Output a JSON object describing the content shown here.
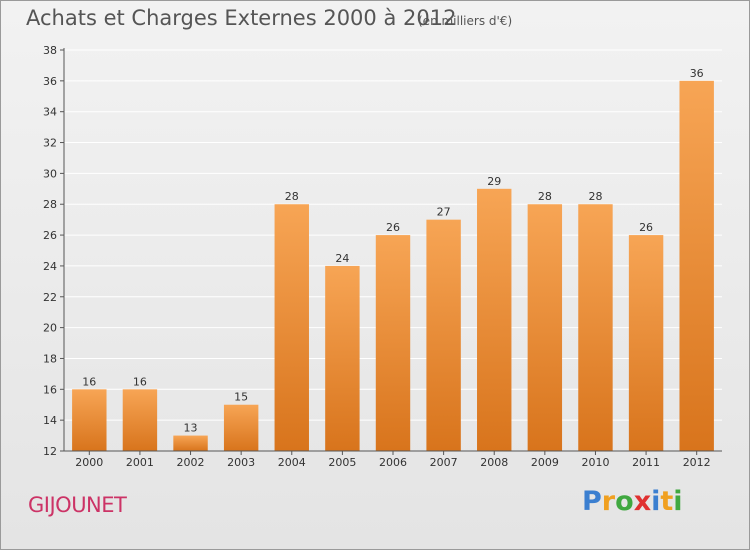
{
  "title": "Achats et Charges Externes 2000 à 2012",
  "subtitle": "(en milliers d'€)",
  "commune": "GIJOUNET",
  "logo": {
    "text": "Proxiti",
    "letters": [
      "P",
      "r",
      "o",
      "x",
      "i",
      "t",
      "i"
    ],
    "colors": [
      "#3b7fd0",
      "#f0a020",
      "#40a840",
      "#e03030",
      "#3b7fd0",
      "#f0a020",
      "#40a840"
    ]
  },
  "colors": {
    "bar_top": "#f7a555",
    "bar_bottom": "#d8741c",
    "grid": "#ffffff",
    "axis": "#555555"
  },
  "chart_data": {
    "type": "bar",
    "categories": [
      "2000",
      "2001",
      "2002",
      "2003",
      "2004",
      "2005",
      "2006",
      "2007",
      "2008",
      "2009",
      "2010",
      "2011",
      "2012"
    ],
    "values": [
      16,
      16,
      13,
      15,
      28,
      24,
      26,
      27,
      29,
      28,
      28,
      26,
      36
    ],
    "ylim": [
      12,
      38
    ],
    "yticks": [
      12,
      14,
      16,
      18,
      20,
      22,
      24,
      26,
      28,
      30,
      32,
      34,
      36,
      38
    ],
    "grid": true,
    "xlabel": "",
    "ylabel": ""
  }
}
